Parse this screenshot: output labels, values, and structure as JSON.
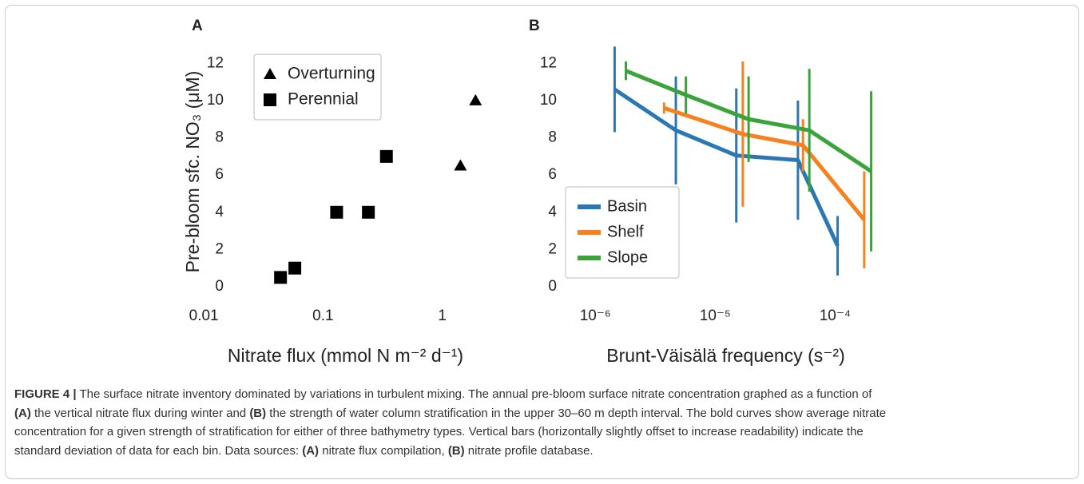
{
  "chart_data": [
    {
      "type": "scatter",
      "panel": "A",
      "xlabel": "Nitrate flux (mmol N m⁻² d⁻¹)",
      "ylabel": "Pre-bloom sfc. NO₃ (μM)",
      "xscale": "log",
      "xlim": [
        0.007,
        3.4
      ],
      "xticks": [
        0.01,
        0.1,
        1
      ],
      "ylim": [
        -0.6,
        13
      ],
      "yticks": [
        0,
        2,
        4,
        6,
        8,
        10,
        12
      ],
      "grid": false,
      "legend": "top-left",
      "series": [
        {
          "name": "Overturning",
          "marker": "triangle",
          "color": "#000000",
          "x": [
            1.42,
            1.9
          ],
          "values": [
            6.5,
            10
          ]
        },
        {
          "name": "Perennial",
          "marker": "square",
          "color": "#000000",
          "x": [
            0.044,
            0.058,
            0.13,
            0.24,
            0.34
          ],
          "values": [
            0.5,
            1,
            4,
            4,
            7
          ]
        }
      ]
    },
    {
      "type": "line",
      "panel": "B",
      "xlabel": "Brunt-Väisälä frequency (s⁻²)",
      "xscale": "log",
      "xlim": [
        5e-07,
        0.0003
      ],
      "xticks": [
        {
          "value": 1e-06,
          "label": "10⁻⁶"
        },
        {
          "value": 1e-05,
          "label": "10⁻⁵"
        },
        {
          "value": 0.0001,
          "label": "10⁻⁴"
        }
      ],
      "ylim": [
        -0.6,
        13
      ],
      "yticks": [
        0,
        2,
        4,
        6,
        8,
        10,
        12
      ],
      "grid": false,
      "legend": "bottom-left",
      "series": [
        {
          "name": "Basin",
          "color": "#2b77b4",
          "x": [
            1.45e-06,
            4.7e-06,
            1.5e-05,
            4.9e-05,
            0.000105
          ],
          "values": [
            10.6,
            8.4,
            7.05,
            6.8,
            2.2
          ],
          "errors": [
            2.3,
            2.9,
            3.6,
            3.2,
            1.6
          ]
        },
        {
          "name": "Shelf",
          "color": "#f5821f",
          "x": [
            3.75e-06,
            1.7e-05,
            5.4e-05,
            0.000175
          ],
          "values": [
            9.6,
            8.2,
            7.6,
            3.6
          ],
          "errors": [
            0.3,
            3.9,
            1.4,
            2.6
          ]
        },
        {
          "name": "Slope",
          "color": "#3aa33b",
          "x": [
            1.8e-06,
            5.7e-06,
            1.9e-05,
            6.1e-05,
            0.0002
          ],
          "values": [
            11.6,
            10.3,
            9.0,
            8.4,
            6.2
          ],
          "errors": [
            0.5,
            1.0,
            2.3,
            3.3,
            4.3
          ]
        }
      ]
    }
  ],
  "caption": {
    "lines": [
      [
        {
          "text": "FIGURE 4 |",
          "bold": true
        },
        {
          "text": " The surface nitrate inventory dominated by variations in turbulent mixing. The annual pre-bloom surface nitrate concentration graphed as a function of"
        }
      ],
      [
        {
          "text": "(A)",
          "bold": true
        },
        {
          "text": " the vertical nitrate flux during winter and "
        },
        {
          "text": "(B)",
          "bold": true
        },
        {
          "text": " the strength of water column stratification in the upper 30–60 m depth interval. The bold curves show average nitrate"
        }
      ],
      [
        {
          "text": "concentration for a given strength of stratification for either of three bathymetry types. Vertical bars (horizontally slightly offset to increase readability) indicate the"
        }
      ],
      [
        {
          "text": "standard deviation of data for each bin. Data sources: "
        },
        {
          "text": "(A)",
          "bold": true
        },
        {
          "text": " nitrate flux compilation, "
        },
        {
          "text": "(B)",
          "bold": true
        },
        {
          "text": " nitrate profile database."
        }
      ]
    ]
  }
}
